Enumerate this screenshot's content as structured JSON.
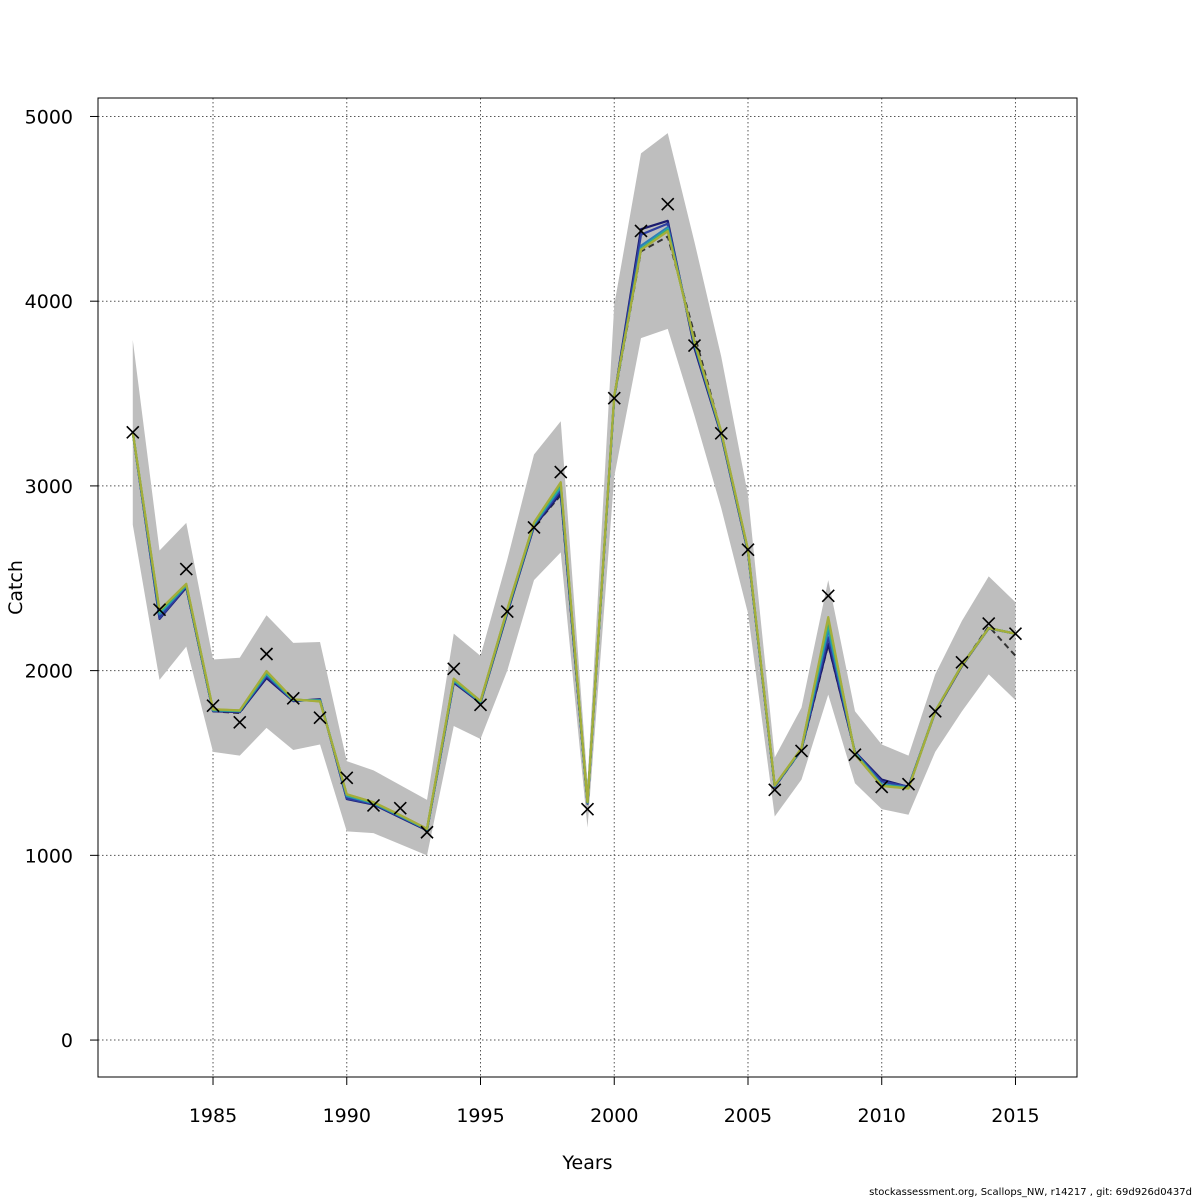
{
  "chart_data": {
    "type": "line",
    "xlabel": "Years",
    "ylabel": "Catch",
    "xlim": [
      1980.7,
      2017.3
    ],
    "ylim": [
      -200,
      5100
    ],
    "x_ticks": [
      1985,
      1990,
      1995,
      2000,
      2005,
      2010,
      2015
    ],
    "y_ticks": [
      0,
      1000,
      2000,
      3000,
      4000,
      5000
    ],
    "grid": true,
    "years": [
      1982,
      1983,
      1984,
      1985,
      1986,
      1987,
      1988,
      1989,
      1990,
      1991,
      1992,
      1993,
      1994,
      1995,
      1996,
      1997,
      1998,
      1999,
      2000,
      2001,
      2002,
      2003,
      2004,
      2005,
      2006,
      2007,
      2008,
      2009,
      2010,
      2011,
      2012,
      2013,
      2014,
      2015
    ],
    "observed": [
      3290,
      2330,
      2550,
      1810,
      1720,
      2090,
      1850,
      1745,
      1420,
      1270,
      1255,
      1125,
      2010,
      1815,
      2320,
      2775,
      3075,
      1250,
      3475,
      4380,
      4525,
      3760,
      3285,
      2655,
      1355,
      1565,
      2405,
      1545,
      1370,
      1385,
      1780,
      2045,
      2255,
      2200
    ],
    "confidence_band": {
      "upper": [
        3790,
        2650,
        2800,
        2060,
        2070,
        2300,
        2150,
        2155,
        1510,
        1460,
        1380,
        1300,
        2200,
        2080,
        2600,
        3170,
        3350,
        1400,
        3980,
        4800,
        4910,
        4320,
        3700,
        2950,
        1530,
        1800,
        2490,
        1780,
        1600,
        1540,
        1980,
        2270,
        2510,
        2370
      ],
      "lower": [
        2790,
        1950,
        2130,
        1560,
        1540,
        1690,
        1570,
        1600,
        1130,
        1120,
        1060,
        1000,
        1700,
        1630,
        2000,
        2490,
        2640,
        1150,
        3050,
        3800,
        3850,
        3380,
        2880,
        2310,
        1210,
        1410,
        1870,
        1390,
        1250,
        1220,
        1560,
        1780,
        1980,
        1840
      ]
    },
    "series": [
      {
        "color": "#333333",
        "dashed": true,
        "values": [
          3290,
          2300,
          2450,
          1780,
          1770,
          1975,
          1840,
          1840,
          1310,
          1280,
          1210,
          1140,
          1950,
          1830,
          2320,
          2780,
          2950,
          1280,
          3475,
          4270,
          4350,
          3820,
          3290,
          2640,
          1370,
          1570,
          2140,
          1560,
          1400,
          1370,
          1780,
          2030,
          2240,
          2080
        ]
      },
      {
        "color": "#1a1a6e",
        "values": [
          3290,
          2280,
          2450,
          1780,
          1775,
          1960,
          1835,
          1845,
          1305,
          1275,
          1205,
          1135,
          1935,
          1825,
          2310,
          2780,
          2960,
          1280,
          3480,
          4390,
          4435,
          3745,
          3275,
          2640,
          1370,
          1575,
          2145,
          1560,
          1410,
          1370,
          1775,
          2025,
          2230,
          2200
        ]
      },
      {
        "color": "#2e3fa0",
        "values": [
          3290,
          2285,
          2455,
          1782,
          1778,
          1970,
          1838,
          1842,
          1308,
          1278,
          1208,
          1138,
          1940,
          1828,
          2318,
          2785,
          2975,
          1282,
          3478,
          4360,
          4420,
          3760,
          3280,
          2645,
          1372,
          1572,
          2180,
          1558,
          1400,
          1372,
          1778,
          2030,
          2228,
          2200
        ]
      },
      {
        "color": "#2d7fb8",
        "values": [
          3290,
          2305,
          2460,
          1785,
          1780,
          1980,
          1840,
          1840,
          1320,
          1282,
          1212,
          1140,
          1945,
          1830,
          2322,
          2790,
          2990,
          1285,
          3482,
          4300,
          4400,
          3770,
          3285,
          2648,
          1375,
          1575,
          2220,
          1555,
          1385,
          1368,
          1778,
          2030,
          2230,
          2200
        ]
      },
      {
        "color": "#27b2a8",
        "values": [
          3290,
          2315,
          2462,
          1786,
          1782,
          1985,
          1842,
          1838,
          1325,
          1284,
          1214,
          1141,
          1948,
          1832,
          2325,
          2795,
          3000,
          1286,
          3484,
          4285,
          4390,
          3775,
          3288,
          2650,
          1376,
          1576,
          2250,
          1552,
          1380,
          1365,
          1780,
          2030,
          2230,
          2200
        ]
      },
      {
        "color": "#3aa86a",
        "values": [
          3290,
          2320,
          2465,
          1788,
          1783,
          1990,
          1843,
          1836,
          1328,
          1286,
          1216,
          1142,
          1952,
          1834,
          2328,
          2798,
          3010,
          1287,
          3486,
          4282,
          4385,
          3778,
          3290,
          2652,
          1377,
          1578,
          2270,
          1550,
          1378,
          1364,
          1780,
          2030,
          2230,
          2200
        ]
      },
      {
        "color": "#7ab84a",
        "values": [
          3290,
          2325,
          2468,
          1790,
          1784,
          1995,
          1844,
          1834,
          1330,
          1287,
          1217,
          1143,
          1955,
          1835,
          2330,
          2800,
          3015,
          1288,
          3488,
          4280,
          4380,
          3780,
          3292,
          2654,
          1378,
          1579,
          2280,
          1548,
          1376,
          1363,
          1780,
          2030,
          2230,
          2200
        ]
      },
      {
        "color": "#a5ad3a",
        "values": [
          3290,
          2328,
          2470,
          1791,
          1785,
          1998,
          1845,
          1833,
          1331,
          1288,
          1218,
          1144,
          1957,
          1836,
          2332,
          2802,
          3020,
          1289,
          3489,
          4278,
          4378,
          3782,
          3294,
          2655,
          1379,
          1580,
          2290,
          1546,
          1375,
          1362,
          1780,
          2030,
          2230,
          2200
        ]
      }
    ]
  },
  "footer_text": "stockassessment.org, Scallops_NW, r14217 , git: 69d926d0437d"
}
